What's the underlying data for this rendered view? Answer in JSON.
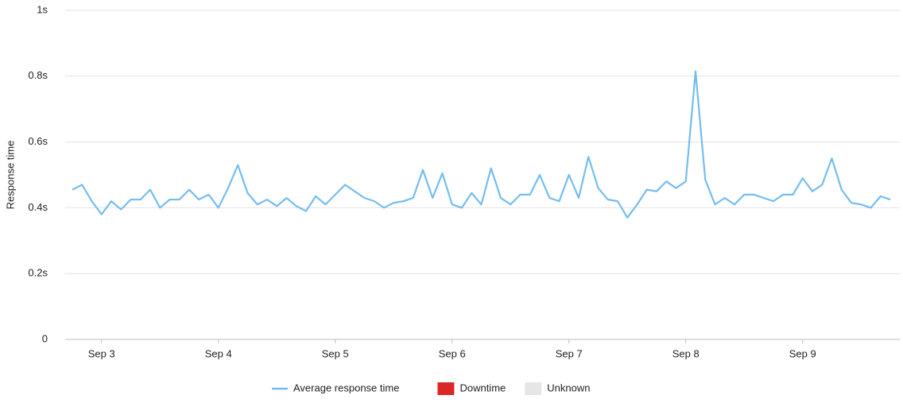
{
  "chart_data": {
    "type": "line",
    "y_label": "Response time",
    "categories": [
      null,
      null,
      null,
      "Sep 3",
      null,
      null,
      null,
      null,
      null,
      null,
      null,
      null,
      null,
      null,
      null,
      "Sep 4",
      null,
      null,
      null,
      null,
      null,
      null,
      null,
      null,
      null,
      null,
      null,
      "Sep 5",
      null,
      null,
      null,
      null,
      null,
      null,
      null,
      null,
      null,
      null,
      null,
      "Sep 6",
      null,
      null,
      null,
      null,
      null,
      null,
      null,
      null,
      null,
      null,
      null,
      "Sep 7",
      null,
      null,
      null,
      null,
      null,
      null,
      null,
      null,
      null,
      null,
      null,
      "Sep 8",
      null,
      null,
      null,
      null,
      null,
      null,
      null,
      null,
      null,
      null,
      null,
      "Sep 9",
      null,
      null,
      null,
      null,
      null,
      null,
      null,
      null,
      null
    ],
    "series": [
      {
        "name": "Average response time",
        "color": "#74bdf0",
        "values": [
          0.455,
          0.47,
          0.42,
          0.38,
          0.42,
          0.395,
          0.425,
          0.425,
          0.455,
          0.4,
          0.425,
          0.425,
          0.455,
          0.425,
          0.44,
          0.4,
          0.46,
          0.53,
          0.445,
          0.41,
          0.425,
          0.405,
          0.43,
          0.405,
          0.39,
          0.435,
          0.41,
          0.44,
          0.47,
          0.45,
          0.43,
          0.42,
          0.4,
          0.415,
          0.42,
          0.43,
          0.515,
          0.43,
          0.505,
          0.41,
          0.4,
          0.445,
          0.41,
          0.52,
          0.43,
          0.41,
          0.44,
          0.44,
          0.5,
          0.43,
          0.42,
          0.5,
          0.43,
          0.555,
          0.46,
          0.425,
          0.42,
          0.37,
          0.41,
          0.455,
          0.45,
          0.48,
          0.46,
          0.48,
          0.815,
          0.485,
          0.41,
          0.43,
          0.41,
          0.44,
          0.44,
          0.43,
          0.42,
          0.44,
          0.44,
          0.49,
          0.45,
          0.47,
          0.55,
          0.455,
          0.415,
          0.41,
          0.4,
          0.435,
          0.425
        ]
      }
    ],
    "legend_extra": [
      {
        "name": "Downtime",
        "color": "#dc2626"
      },
      {
        "name": "Unknown",
        "color": "#e6e6e6"
      }
    ],
    "ylim": [
      0,
      1
    ],
    "yticks": [
      0,
      {
        "value": 0.2,
        "label": "0.2s"
      },
      {
        "value": 0.4,
        "label": "0.4s"
      },
      {
        "value": 0.6,
        "label": "0.6s"
      },
      {
        "value": 0.8,
        "label": "0.8s"
      },
      {
        "value": 1,
        "label": "1s"
      }
    ],
    "grid": true
  }
}
